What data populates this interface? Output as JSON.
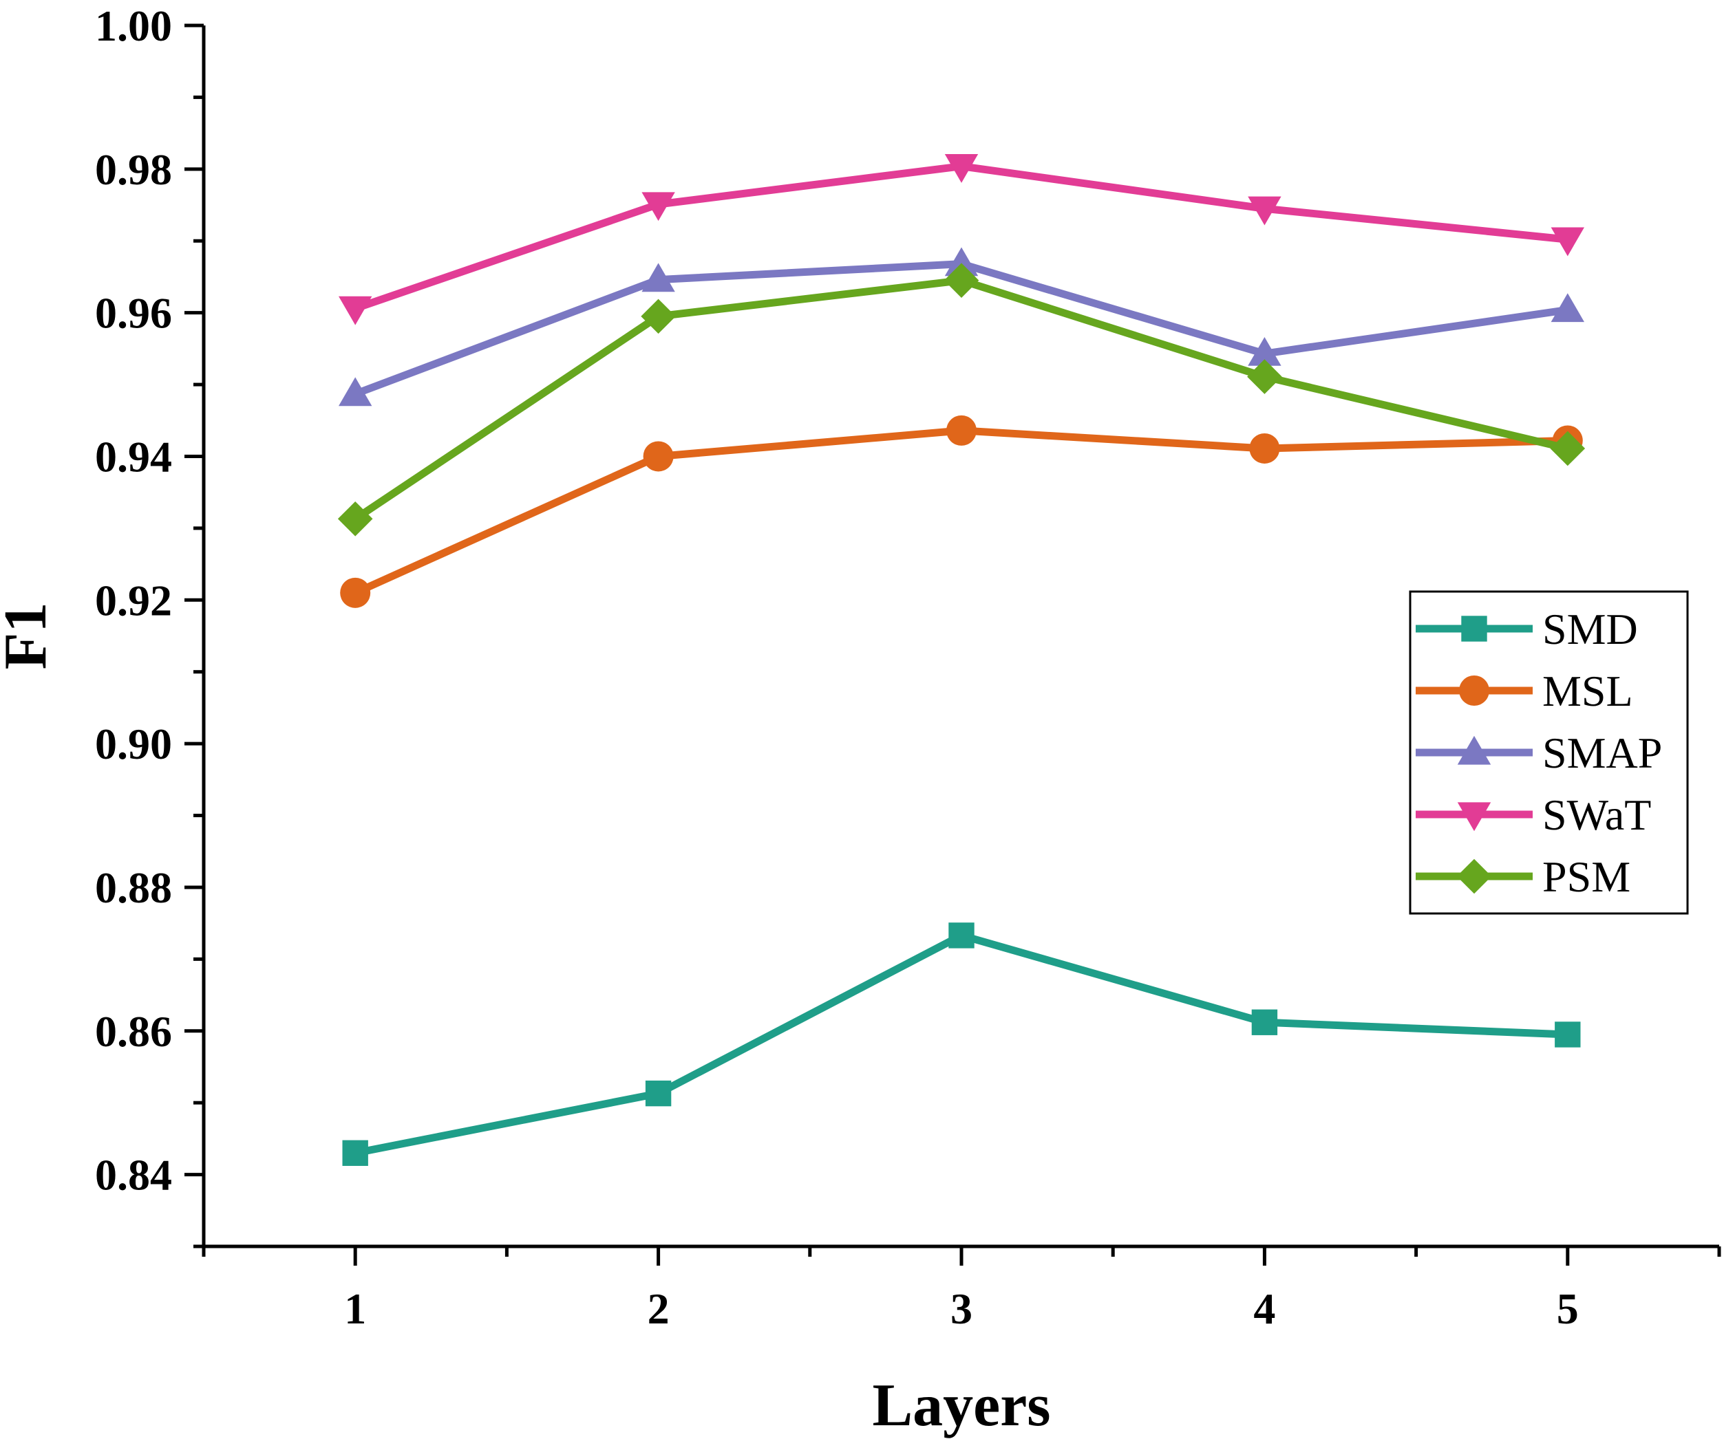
{
  "chart_data": {
    "type": "line",
    "title": "",
    "xlabel": "Layers",
    "ylabel": "F1",
    "x": [
      1,
      2,
      3,
      4,
      5
    ],
    "xlim": [
      0.5,
      5.5
    ],
    "ylim": [
      0.83,
      1.0
    ],
    "x_ticks": [
      "1",
      "2",
      "3",
      "4",
      "5"
    ],
    "y_ticks": [
      "0.84",
      "0.86",
      "0.88",
      "0.90",
      "0.92",
      "0.94",
      "0.96",
      "0.98",
      "1.00"
    ],
    "y_tick_values": [
      0.84,
      0.86,
      0.88,
      0.9,
      0.92,
      0.94,
      0.96,
      0.98,
      1.0
    ],
    "grid": false,
    "legend_position": "right",
    "series": [
      {
        "name": "SMD",
        "marker": "square",
        "color": "#1f9e89",
        "values": [
          0.843,
          0.8513,
          0.8733,
          0.8612,
          0.8595
        ]
      },
      {
        "name": "MSL",
        "marker": "circle",
        "color": "#e0661a",
        "values": [
          0.921,
          0.94,
          0.9436,
          0.9411,
          0.9422
        ]
      },
      {
        "name": "SMAP",
        "marker": "triangle-up",
        "color": "#7b78c2",
        "values": [
          0.9487,
          0.9646,
          0.9668,
          0.9543,
          0.9604
        ]
      },
      {
        "name": "SWaT",
        "marker": "triangle-down",
        "color": "#e23c95",
        "values": [
          0.9606,
          0.9751,
          0.9804,
          0.9745,
          0.9702
        ]
      },
      {
        "name": "PSM",
        "marker": "diamond",
        "color": "#66a61e",
        "values": [
          0.9313,
          0.9595,
          0.9645,
          0.9511,
          0.9411
        ]
      }
    ]
  }
}
